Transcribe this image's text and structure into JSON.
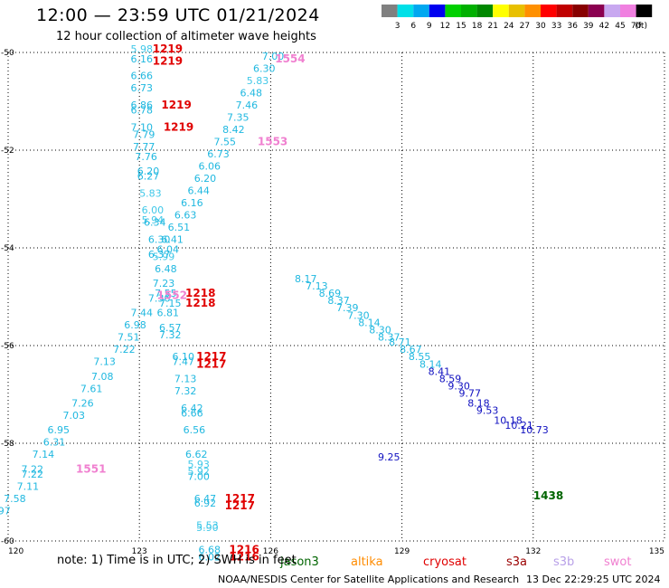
{
  "header": {
    "title": "12:00 — 23:59 UTC 01/21/2024",
    "subtitle": "12 hour collection of altimeter wave heights"
  },
  "footer": {
    "note": "note:  1) Time is in UTC; 2) SWH is in feet",
    "credit": "NOAA/NESDIS Center for Satellite Applications and Research",
    "timestamp": "13 Dec 22:29:25 UTC 2024"
  },
  "colorbar": {
    "colors": [
      "#808080",
      "#00e0e8",
      "#00a8f0",
      "#0000f0",
      "#00d000",
      "#00b000",
      "#008800",
      "#ffff00",
      "#e8c000",
      "#ff9000",
      "#ff0000",
      "#c00000",
      "#880000",
      "#8b0050",
      "#c8a8f0",
      "#f080e0",
      "#000000"
    ],
    "labels": [
      "3",
      "6",
      "9",
      "12",
      "15",
      "18",
      "21",
      "24",
      "27",
      "30",
      "33",
      "36",
      "39",
      "42",
      "45",
      "70",
      "(ft)"
    ]
  },
  "satellites": [
    {
      "name": "jason3",
      "color": "#006400"
    },
    {
      "name": "altika",
      "color": "#ff8c00"
    },
    {
      "name": "cryosat",
      "color": "#e00000"
    },
    {
      "name": "s3a",
      "color": "#9b0000"
    },
    {
      "name": "s3b",
      "color": "#b8a0e8"
    },
    {
      "name": "swot",
      "color": "#f080d0"
    }
  ],
  "chart_data": {
    "type": "scatter",
    "xlim": [
      120,
      135
    ],
    "ylim": [
      -60,
      -50
    ],
    "xticks": [
      "120",
      "123",
      "126",
      "129",
      "132",
      "135"
    ],
    "yticks": [
      "-50",
      "-52",
      "-54",
      "-56",
      "-58",
      "-60"
    ],
    "grid": true,
    "points": [
      {
        "x": 122.8,
        "y": -50.0,
        "label": "5.98",
        "color": "#40c8e8"
      },
      {
        "x": 122.8,
        "y": -50.2,
        "label": "6.16",
        "color": "#20b8e0"
      },
      {
        "x": 122.8,
        "y": -50.55,
        "label": "6.66",
        "color": "#20b8e0"
      },
      {
        "x": 122.8,
        "y": -50.8,
        "label": "6.73",
        "color": "#20b8e0"
      },
      {
        "x": 122.8,
        "y": -51.15,
        "label": "6.86",
        "color": "#20b8e0"
      },
      {
        "x": 122.8,
        "y": -51.25,
        "label": "6.78",
        "color": "#20b8e0"
      },
      {
        "x": 122.8,
        "y": -51.6,
        "label": "7.10",
        "color": "#20b8e0"
      },
      {
        "x": 122.85,
        "y": -51.75,
        "label": "7.79",
        "color": "#20b8e0"
      },
      {
        "x": 122.85,
        "y": -52.0,
        "label": "7.77",
        "color": "#20b8e0"
      },
      {
        "x": 122.9,
        "y": -52.2,
        "label": "7.76",
        "color": "#20b8e0"
      },
      {
        "x": 122.95,
        "y": -52.5,
        "label": "6.20",
        "color": "#20b8e0"
      },
      {
        "x": 122.95,
        "y": -52.6,
        "label": "6.27",
        "color": "#20b8e0"
      },
      {
        "x": 123.0,
        "y": -52.95,
        "label": "5.83",
        "color": "#40c8e8"
      },
      {
        "x": 123.05,
        "y": -53.3,
        "label": "6.00",
        "color": "#40c8e8"
      },
      {
        "x": 123.05,
        "y": -53.5,
        "label": "5.94",
        "color": "#40c8e8"
      },
      {
        "x": 123.1,
        "y": -53.55,
        "label": "6.34",
        "color": "#20b8e0"
      },
      {
        "x": 123.2,
        "y": -53.9,
        "label": "6.30",
        "color": "#20b8e0"
      },
      {
        "x": 123.2,
        "y": -54.2,
        "label": "6.37",
        "color": "#20b8e0"
      },
      {
        "x": 123.3,
        "y": -54.25,
        "label": "5.99",
        "color": "#40c8e8"
      },
      {
        "x": 123.35,
        "y": -54.5,
        "label": "6.48",
        "color": "#20b8e0"
      },
      {
        "x": 123.3,
        "y": -54.8,
        "label": "7.23",
        "color": "#20b8e0"
      },
      {
        "x": 123.35,
        "y": -55.0,
        "label": "7.55",
        "color": "#20b8e0"
      },
      {
        "x": 123.2,
        "y": -55.1,
        "label": "7.36",
        "color": "#20b8e0"
      },
      {
        "x": 123.45,
        "y": -55.2,
        "label": "7.15",
        "color": "#20b8e0"
      },
      {
        "x": 122.8,
        "y": -55.4,
        "label": "7.44",
        "color": "#20b8e0"
      },
      {
        "x": 123.4,
        "y": -55.4,
        "label": "6.81",
        "color": "#20b8e0"
      },
      {
        "x": 122.65,
        "y": -55.65,
        "label": "6.98",
        "color": "#20b8e0"
      },
      {
        "x": 123.45,
        "y": -55.7,
        "label": "6.57",
        "color": "#20b8e0"
      },
      {
        "x": 123.45,
        "y": -55.85,
        "label": "7.32",
        "color": "#20b8e0"
      },
      {
        "x": 122.5,
        "y": -55.9,
        "label": "7.51",
        "color": "#20b8e0"
      },
      {
        "x": 122.4,
        "y": -56.15,
        "label": "7.22",
        "color": "#20b8e0"
      },
      {
        "x": 123.75,
        "y": -56.3,
        "label": "6.10",
        "color": "#20b8e0"
      },
      {
        "x": 123.75,
        "y": -56.4,
        "label": "7.47",
        "color": "#20b8e0"
      },
      {
        "x": 121.95,
        "y": -56.4,
        "label": "7.13",
        "color": "#20b8e0"
      },
      {
        "x": 121.9,
        "y": -56.7,
        "label": "7.08",
        "color": "#20b8e0"
      },
      {
        "x": 123.8,
        "y": -56.75,
        "label": "7.13",
        "color": "#20b8e0"
      },
      {
        "x": 121.65,
        "y": -56.95,
        "label": "7.61",
        "color": "#20b8e0"
      },
      {
        "x": 123.8,
        "y": -57.0,
        "label": "7.32",
        "color": "#20b8e0"
      },
      {
        "x": 121.45,
        "y": -57.25,
        "label": "7.26",
        "color": "#20b8e0"
      },
      {
        "x": 123.95,
        "y": -57.35,
        "label": "6.42",
        "color": "#20b8e0"
      },
      {
        "x": 123.95,
        "y": -57.45,
        "label": "6.66",
        "color": "#20b8e0"
      },
      {
        "x": 121.25,
        "y": -57.5,
        "label": "7.03",
        "color": "#20b8e0"
      },
      {
        "x": 124.0,
        "y": -57.8,
        "label": "6.56",
        "color": "#20b8e0"
      },
      {
        "x": 120.9,
        "y": -57.8,
        "label": "6.95",
        "color": "#20b8e0"
      },
      {
        "x": 120.8,
        "y": -58.05,
        "label": "6.31",
        "color": "#20b8e0"
      },
      {
        "x": 124.05,
        "y": -58.3,
        "label": "6.62",
        "color": "#20b8e0"
      },
      {
        "x": 120.55,
        "y": -58.3,
        "label": "7.14",
        "color": "#20b8e0"
      },
      {
        "x": 124.1,
        "y": -58.5,
        "label": "5.93",
        "color": "#40c8e8"
      },
      {
        "x": 120.3,
        "y": -58.6,
        "label": "7.22",
        "color": "#20b8e0"
      },
      {
        "x": 124.1,
        "y": -58.65,
        "label": "5.92",
        "color": "#40c8e8"
      },
      {
        "x": 120.3,
        "y": -58.7,
        "label": "7.22",
        "color": "#20b8e0"
      },
      {
        "x": 124.1,
        "y": -58.75,
        "label": "7.00",
        "color": "#20b8e0"
      },
      {
        "x": 120.2,
        "y": -58.95,
        "label": "7.11",
        "color": "#20b8e0"
      },
      {
        "x": 124.25,
        "y": -59.2,
        "label": "6.47",
        "color": "#20b8e0"
      },
      {
        "x": 119.9,
        "y": -59.2,
        "label": "7.58",
        "color": "#20b8e0"
      },
      {
        "x": 124.25,
        "y": -59.3,
        "label": "6.92",
        "color": "#20b8e0"
      },
      {
        "x": 119.55,
        "y": -59.45,
        "label": "6.97",
        "color": "#20b8e0"
      },
      {
        "x": 124.3,
        "y": -59.75,
        "label": "5.53",
        "color": "#40c8e8"
      },
      {
        "x": 124.3,
        "y": -59.8,
        "label": "5.90",
        "color": "#40c8e8"
      },
      {
        "x": 124.35,
        "y": -60.25,
        "label": "6.68",
        "color": "#20b8e0"
      },
      {
        "x": 124.35,
        "y": -60.4,
        "label": "6.02",
        "color": "#20b8e0"
      },
      {
        "x": 125.8,
        "y": -50.15,
        "label": "7.00",
        "color": "#20b8e0"
      },
      {
        "x": 125.6,
        "y": -50.4,
        "label": "6.30",
        "color": "#20b8e0"
      },
      {
        "x": 125.45,
        "y": -50.65,
        "label": "5.83",
        "color": "#40c8e8"
      },
      {
        "x": 125.3,
        "y": -50.9,
        "label": "6.48",
        "color": "#20b8e0"
      },
      {
        "x": 125.2,
        "y": -51.15,
        "label": "7.46",
        "color": "#20b8e0"
      },
      {
        "x": 125.0,
        "y": -51.4,
        "label": "7.35",
        "color": "#20b8e0"
      },
      {
        "x": 124.9,
        "y": -51.65,
        "label": "8.42",
        "color": "#20b8e0"
      },
      {
        "x": 124.7,
        "y": -51.9,
        "label": "7.55",
        "color": "#20b8e0"
      },
      {
        "x": 124.55,
        "y": -52.15,
        "label": "6.73",
        "color": "#20b8e0"
      },
      {
        "x": 124.35,
        "y": -52.4,
        "label": "6.06",
        "color": "#20b8e0"
      },
      {
        "x": 124.25,
        "y": -52.65,
        "label": "6.20",
        "color": "#20b8e0"
      },
      {
        "x": 124.1,
        "y": -52.9,
        "label": "6.44",
        "color": "#20b8e0"
      },
      {
        "x": 123.95,
        "y": -53.15,
        "label": "6.16",
        "color": "#20b8e0"
      },
      {
        "x": 123.8,
        "y": -53.4,
        "label": "6.63",
        "color": "#20b8e0"
      },
      {
        "x": 123.65,
        "y": -53.65,
        "label": "6.51",
        "color": "#20b8e0"
      },
      {
        "x": 123.5,
        "y": -53.9,
        "label": "6.41",
        "color": "#20b8e0"
      },
      {
        "x": 123.4,
        "y": -54.1,
        "label": "6.04",
        "color": "#20b8e0"
      },
      {
        "x": 131.7,
        "y": -57.8,
        "label": "10.73",
        "color": "#1010c0"
      },
      {
        "x": 131.35,
        "y": -57.7,
        "label": "10.21",
        "color": "#1010c0"
      },
      {
        "x": 131.1,
        "y": -57.6,
        "label": "10.18",
        "color": "#1010c0"
      },
      {
        "x": 130.7,
        "y": -57.4,
        "label": "9.53",
        "color": "#1010c0"
      },
      {
        "x": 130.5,
        "y": -57.25,
        "label": "8.18",
        "color": "#1010c0"
      },
      {
        "x": 130.3,
        "y": -57.05,
        "label": "9.77",
        "color": "#1010c0"
      },
      {
        "x": 130.05,
        "y": -56.9,
        "label": "9.30",
        "color": "#1010c0"
      },
      {
        "x": 129.85,
        "y": -56.75,
        "label": "8.59",
        "color": "#1010c0"
      },
      {
        "x": 129.6,
        "y": -56.6,
        "label": "8.41",
        "color": "#1010c0"
      },
      {
        "x": 128.45,
        "y": -58.35,
        "label": "9.25",
        "color": "#1010c0"
      },
      {
        "x": 129.4,
        "y": -56.45,
        "label": "8.14",
        "color": "#20b8e0"
      },
      {
        "x": 129.15,
        "y": -56.3,
        "label": "8.55",
        "color": "#20b8e0"
      },
      {
        "x": 128.95,
        "y": -56.15,
        "label": "8.67",
        "color": "#20b8e0"
      },
      {
        "x": 128.7,
        "y": -56.0,
        "label": "8.71",
        "color": "#20b8e0"
      },
      {
        "x": 128.45,
        "y": -55.9,
        "label": "8.37",
        "color": "#20b8e0"
      },
      {
        "x": 128.25,
        "y": -55.75,
        "label": "8.30",
        "color": "#20b8e0"
      },
      {
        "x": 128.0,
        "y": -55.6,
        "label": "8.14",
        "color": "#20b8e0"
      },
      {
        "x": 127.75,
        "y": -55.45,
        "label": "7.30",
        "color": "#20b8e0"
      },
      {
        "x": 127.5,
        "y": -55.3,
        "label": "7.39",
        "color": "#20b8e0"
      },
      {
        "x": 127.3,
        "y": -55.15,
        "label": "8.37",
        "color": "#20b8e0"
      },
      {
        "x": 127.1,
        "y": -55.0,
        "label": "8.69",
        "color": "#20b8e0"
      },
      {
        "x": 126.8,
        "y": -54.85,
        "label": "7.13",
        "color": "#20b8e0"
      },
      {
        "x": 126.55,
        "y": -54.7,
        "label": "8.17",
        "color": "#20b8e0"
      }
    ],
    "pass_labels": [
      {
        "x": 123.3,
        "y": -50.0,
        "label": "1219",
        "color": "#e00000"
      },
      {
        "x": 123.3,
        "y": -50.25,
        "label": "1219",
        "color": "#e00000"
      },
      {
        "x": 123.5,
        "y": -51.15,
        "label": "1219",
        "color": "#e00000"
      },
      {
        "x": 123.55,
        "y": -51.6,
        "label": "1219",
        "color": "#e00000"
      },
      {
        "x": 126.1,
        "y": -50.2,
        "label": "1554",
        "color": "#f080d0"
      },
      {
        "x": 125.7,
        "y": -51.9,
        "label": "1553",
        "color": "#f080d0"
      },
      {
        "x": 123.4,
        "y": -55.05,
        "label": "1552",
        "color": "#f080d0"
      },
      {
        "x": 124.05,
        "y": -55.0,
        "label": "1218",
        "color": "#e00000"
      },
      {
        "x": 124.05,
        "y": -55.2,
        "label": "1218",
        "color": "#e00000"
      },
      {
        "x": 124.3,
        "y": -56.3,
        "label": "1217",
        "color": "#e00000"
      },
      {
        "x": 124.3,
        "y": -56.45,
        "label": "1217",
        "color": "#e00000"
      },
      {
        "x": 121.55,
        "y": -58.6,
        "label": "1551",
        "color": "#f080d0"
      },
      {
        "x": 124.95,
        "y": -59.2,
        "label": "1217",
        "color": "#e00000"
      },
      {
        "x": 124.95,
        "y": -59.35,
        "label": "1217",
        "color": "#e00000"
      },
      {
        "x": 125.05,
        "y": -60.25,
        "label": "1216",
        "color": "#e00000"
      },
      {
        "x": 125.05,
        "y": -60.4,
        "label": "1216",
        "color": "#e00000"
      },
      {
        "x": 132.0,
        "y": -59.15,
        "label": "1438",
        "color": "#006400"
      }
    ]
  }
}
